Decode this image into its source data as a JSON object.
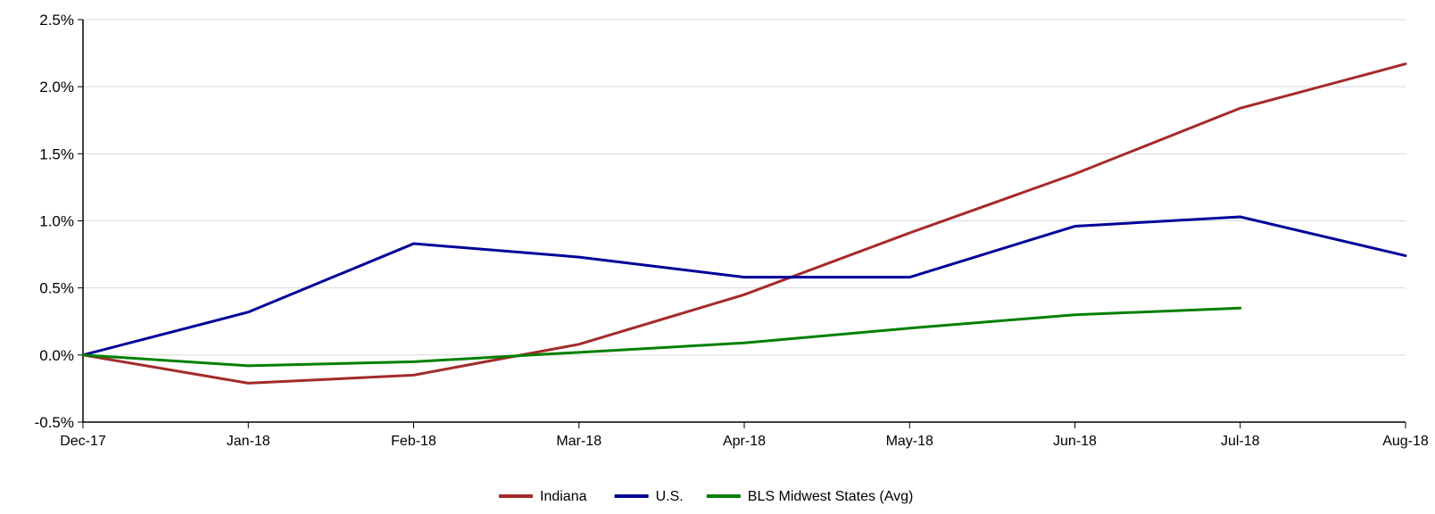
{
  "chart_data": {
    "type": "line",
    "title": "",
    "xlabel": "",
    "ylabel": "",
    "categories": [
      "Dec-17",
      "Jan-18",
      "Feb-18",
      "Mar-18",
      "Apr-18",
      "May-18",
      "Jun-18",
      "Jul-18",
      "Aug-18"
    ],
    "ylim": [
      -0.5,
      2.5
    ],
    "yticks": [
      -0.5,
      0.0,
      0.5,
      1.0,
      1.5,
      2.0,
      2.5
    ],
    "ytick_labels": [
      "-0.5%",
      "0.0%",
      "0.5%",
      "1.0%",
      "1.5%",
      "2.0%",
      "2.5%"
    ],
    "grid": true,
    "legend_position": "bottom-center",
    "series": [
      {
        "name": "Indiana",
        "color": "#a52a2a",
        "values": [
          0.0,
          -0.21,
          -0.15,
          0.08,
          0.45,
          0.91,
          1.35,
          1.84,
          2.17
        ]
      },
      {
        "name": "U.S.",
        "color": "#000099",
        "values": [
          0.0,
          0.32,
          0.83,
          0.73,
          0.58,
          0.58,
          0.96,
          1.03,
          0.74
        ]
      },
      {
        "name": "BLS Midwest States (Avg)",
        "color": "#008000",
        "values": [
          0.0,
          -0.08,
          -0.05,
          0.02,
          0.09,
          0.2,
          0.3,
          0.35,
          null
        ]
      }
    ]
  }
}
